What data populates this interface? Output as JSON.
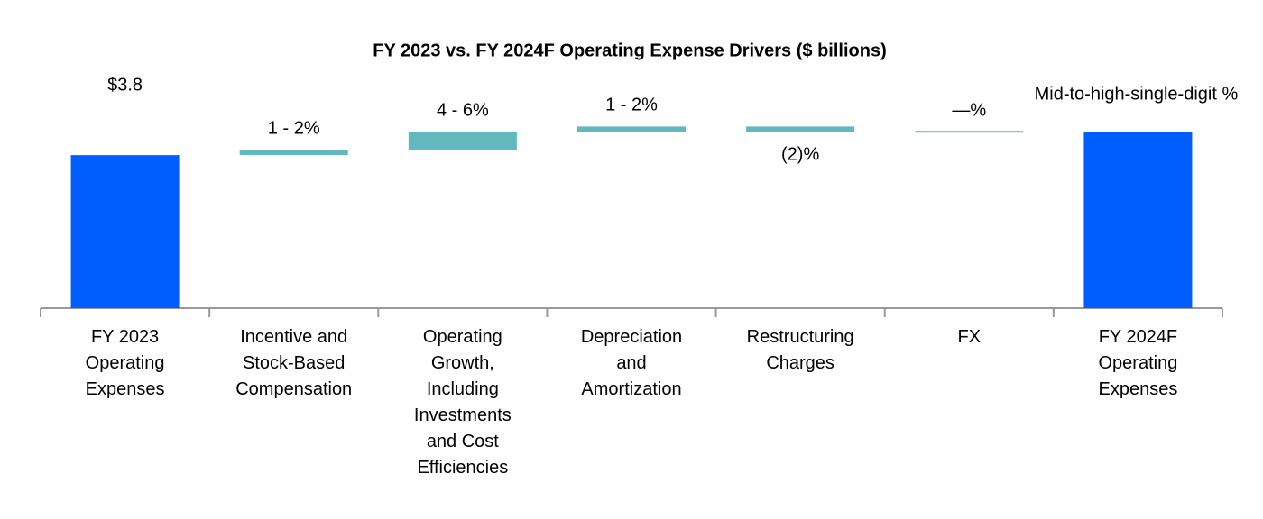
{
  "chart_data": {
    "type": "waterfall",
    "title": "FY 2023 vs. FY 2024F Operating Expense Drivers ($ billions)",
    "categories": [
      "FY 2023\nOperating\nExpenses",
      "Incentive and\nStock-Based\nCompensation",
      "Operating\nGrowth,\nIncluding\nInvestments\nand Cost\nEfficiencies",
      "Depreciation\nand\nAmortization",
      "Restructuring\nCharges",
      "FX",
      "FY 2024F\nOperating\nExpenses"
    ],
    "values": [
      3.8,
      0.13,
      0.45,
      0.13,
      -0.13,
      0,
      4.38
    ],
    "labels": [
      "$3.8",
      "1 - 2%",
      "4 - 6%",
      "1 - 2%",
      "(2)%",
      "—%",
      "Mid-to-high-single-digit %"
    ],
    "total_color": "#005eff",
    "change_color": "#62b8bd"
  }
}
